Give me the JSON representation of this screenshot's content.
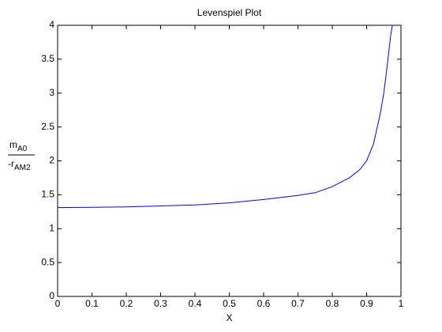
{
  "chart_data": {
    "type": "line",
    "title": "Levenspiel Plot",
    "xlabel": "X",
    "ylabel_numerator": [
      "m",
      "A0"
    ],
    "ylabel_denominator": [
      "-r",
      "AM2"
    ],
    "x": [
      0,
      0.1,
      0.2,
      0.3,
      0.4,
      0.5,
      0.6,
      0.7,
      0.75,
      0.8,
      0.85,
      0.88,
      0.9,
      0.92,
      0.94,
      0.95,
      0.96,
      0.97,
      0.975
    ],
    "series": [
      {
        "color": "#0000ff",
        "values": [
          1.31,
          1.315,
          1.32,
          1.335,
          1.35,
          1.38,
          1.43,
          1.49,
          1.53,
          1.62,
          1.75,
          1.87,
          2.0,
          2.25,
          2.7,
          3.0,
          3.4,
          3.85,
          4.0
        ]
      }
    ],
    "xlim": [
      0,
      1
    ],
    "xticks": [
      0,
      0.1,
      0.2,
      0.3,
      0.4,
      0.5,
      0.6,
      0.7,
      0.8,
      0.9,
      1
    ],
    "ylim": [
      0,
      4
    ],
    "yticks": [
      0,
      0.5,
      1,
      1.5,
      2,
      2.5,
      3,
      3.5,
      4
    ],
    "grid": false
  }
}
